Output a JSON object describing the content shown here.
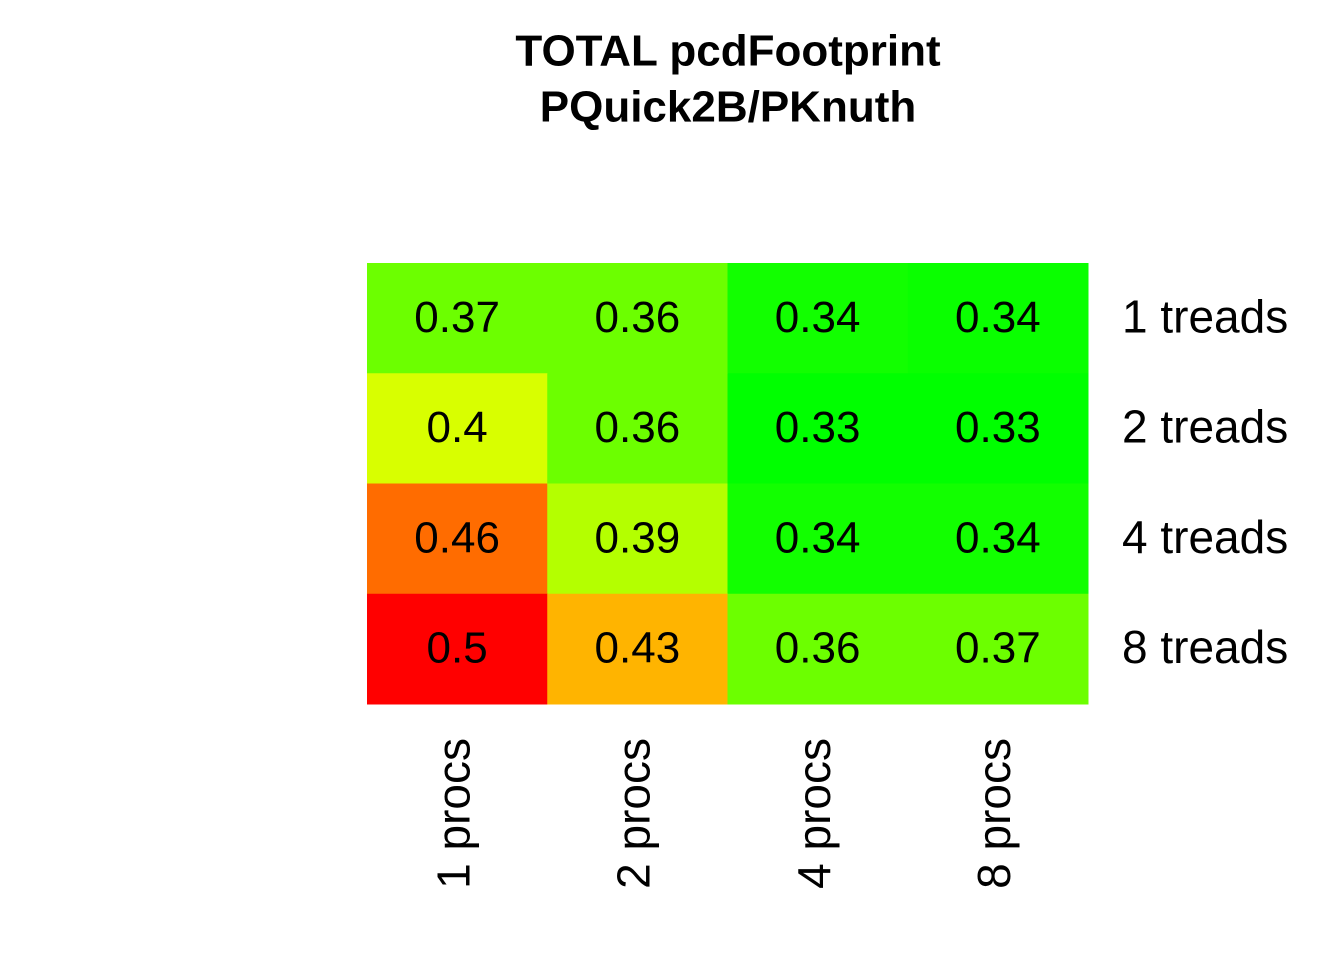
{
  "chart_data": {
    "type": "heatmap",
    "title": "TOTAL  pcdFootprint",
    "subtitle": "PQuick2B/PKnuth",
    "rows": [
      "1 treads",
      "2 treads",
      "4 treads",
      "8 treads"
    ],
    "columns": [
      "1 procs",
      "2 procs",
      "4 procs",
      "8 procs"
    ],
    "values": [
      [
        0.37,
        0.36,
        0.34,
        0.34
      ],
      [
        0.4,
        0.36,
        0.33,
        0.33
      ],
      [
        0.46,
        0.39,
        0.34,
        0.34
      ],
      [
        0.5,
        0.43,
        0.36,
        0.37
      ]
    ],
    "colors": [
      [
        "#6cff00",
        "#6cff00",
        "#12ff00",
        "#0aff00"
      ],
      [
        "#d8ff00",
        "#6cff00",
        "#00ff00",
        "#00ff00"
      ],
      [
        "#ff6c00",
        "#b4ff00",
        "#12ff00",
        "#12ff00"
      ],
      [
        "#ff0000",
        "#ffb400",
        "#6cff00",
        "#6cff00"
      ]
    ]
  }
}
